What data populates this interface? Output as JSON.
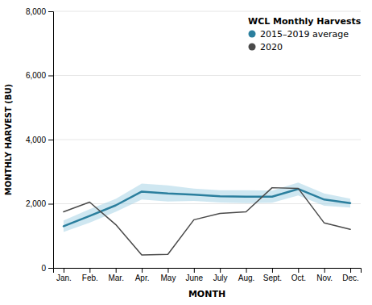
{
  "chart_data": {
    "type": "line",
    "categories": [
      "Jan.",
      "Feb.",
      "Mar.",
      "Apr.",
      "May",
      "June",
      "July",
      "Aug.",
      "Sept.",
      "Oct.",
      "Nov.",
      "Dec."
    ],
    "series": [
      {
        "name": "2015–2019 average",
        "color": "#2b7f9e",
        "values": [
          1300,
          1620,
          1950,
          2380,
          2320,
          2280,
          2230,
          2220,
          2220,
          2460,
          2130,
          2020
        ],
        "band": {
          "color": "#a8d4e6",
          "lower": [
            1120,
            1410,
            1750,
            2130,
            2070,
            2090,
            2040,
            2020,
            2030,
            2260,
            1940,
            1880
          ],
          "upper": [
            1480,
            1830,
            2150,
            2630,
            2570,
            2470,
            2420,
            2420,
            2410,
            2660,
            2320,
            2160
          ]
        }
      },
      {
        "name": "2020",
        "color": "#4a4a4a",
        "values": [
          1750,
          2050,
          1350,
          400,
          420,
          1500,
          1700,
          1750,
          2500,
          2480,
          1400,
          1200
        ]
      }
    ],
    "legend_title": "WCL Monthly Harvests",
    "xlabel": "MONTH",
    "ylabel": "MONTHLY HARVEST (BU)",
    "ylim": [
      0,
      8000
    ],
    "yticks": [
      0,
      {
        "value": 2000,
        "label": "2,000"
      },
      {
        "value": 4000,
        "label": "4,000"
      },
      {
        "value": 6000,
        "label": "6,000"
      },
      {
        "value": 8000,
        "label": "8,000"
      }
    ],
    "grid": true,
    "legend": "upper-right"
  }
}
